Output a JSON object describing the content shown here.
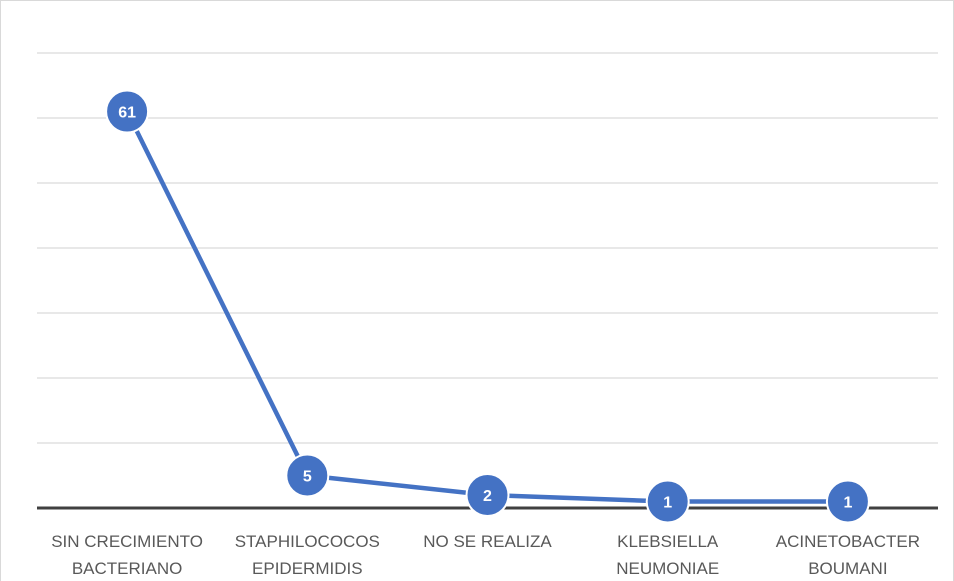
{
  "chart_data": {
    "type": "line",
    "title": "",
    "xlabel": "",
    "ylabel": "",
    "categories": [
      [
        "SIN CRECIMIENTO",
        "BACTERIANO"
      ],
      [
        "STAPHILOCOCOS",
        "EPIDERMIDIS"
      ],
      [
        "NO SE REALIZA"
      ],
      [
        "KLEBSIELLA",
        "NEUMONIAE"
      ],
      [
        "ACINETOBACTER",
        "BOUMANI"
      ]
    ],
    "series": [
      {
        "values": [
          61,
          5,
          2,
          1,
          1
        ]
      }
    ],
    "data_labels": [
      "61",
      "5",
      "2",
      "1",
      "1"
    ],
    "ylim": [
      0,
      70
    ],
    "ytick_step": 10,
    "grid": true,
    "legend": "none",
    "colors": {
      "series": "#4472c4",
      "grid": "#d9d9d9",
      "axis": "#404040",
      "label": "#595959",
      "data_label": "#ffffff"
    }
  }
}
